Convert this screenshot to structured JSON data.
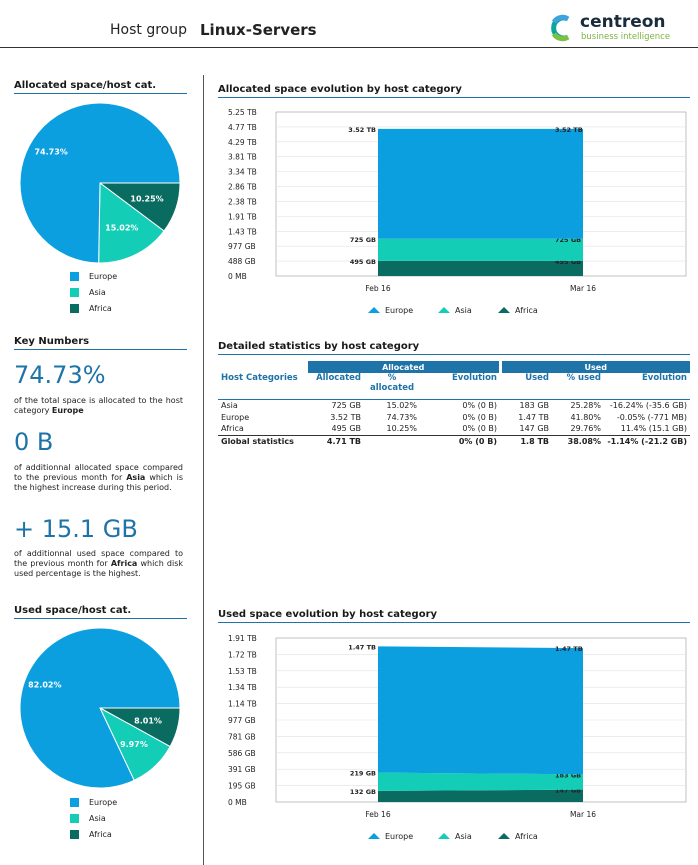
{
  "header": {
    "prefix": "Host group",
    "group_name": "Linux-Servers",
    "logo_text": "centreon",
    "logo_sub": "business intelligence"
  },
  "colors": {
    "europe": "#0b9fe0",
    "asia": "#14cdb6",
    "africa": "#0a6b60",
    "accent": "#1e73a8"
  },
  "legend": [
    "Europe",
    "Asia",
    "Africa"
  ],
  "alloc_pie": {
    "title": "Allocated space/host cat.",
    "labels": [
      "74.73%",
      "15.02%",
      "10.25%"
    ]
  },
  "used_pie": {
    "title": "Used space/host cat.",
    "labels": [
      "82.02%",
      "9.97%",
      "8.01%"
    ]
  },
  "key_numbers": {
    "title": "Key Numbers",
    "k1_value": "74.73%",
    "k1_text_a": "of the total space is allocated to the host category",
    "k1_bold": "Europe",
    "k2_value": "0 B",
    "k2_text_a": "of additionnal allocated space compared to the previous month for",
    "k2_bold": "Asia",
    "k2_text_b": "which is the highest increase during this period.",
    "k3_value": "+ 15.1 GB",
    "k3_text_a": "of additionnal used space compared to the previous month for",
    "k3_bold": "Africa",
    "k3_text_b": "which disk used percentage is the highest."
  },
  "alloc_chart_title": "Allocated space evolution by host category",
  "used_chart_title": "Used space evolution by host category",
  "stats": {
    "title": "Detailed statistics by host category",
    "group_allocated": "Allocated",
    "group_used": "Used",
    "columns": [
      "Host Categories",
      "Allocated",
      "% allocated",
      "Evolution",
      "Used",
      "% used",
      "Evolution"
    ],
    "rows": [
      [
        "Asia",
        "725 GB",
        "15.02%",
        "0% (0 B)",
        "183 GB",
        "25.28%",
        "-16.24% (-35.6 GB)"
      ],
      [
        "Europe",
        "3.52 TB",
        "74.73%",
        "0% (0 B)",
        "1.47 TB",
        "41.80%",
        "-0.05% (-771 MB)"
      ],
      [
        "Africa",
        "495 GB",
        "10.25%",
        "0% (0 B)",
        "147 GB",
        "29.76%",
        "11.4% (15.1 GB)"
      ]
    ],
    "total": [
      "Global statistics",
      "4.71 TB",
      "",
      "0% (0 B)",
      "1.8 TB",
      "38.08%",
      "-1.14% (-21.2 GB)"
    ]
  },
  "chart_data": [
    {
      "type": "pie",
      "title": "Allocated space/host cat.",
      "categories": [
        "Europe",
        "Asia",
        "Africa"
      ],
      "values": [
        74.73,
        15.02,
        10.25
      ]
    },
    {
      "type": "area",
      "title": "Allocated space evolution by host category",
      "x": [
        "Feb 16",
        "Mar 16"
      ],
      "y_ticks": [
        "0 MB",
        "488 GB",
        "977 GB",
        "1.43 TB",
        "1.91 TB",
        "2.38 TB",
        "2.86 TB",
        "3.34 TB",
        "3.81 TB",
        "4.29 TB",
        "4.77 TB",
        "5.25 TB"
      ],
      "y_unit": "GB",
      "ylim": [
        0,
        5376
      ],
      "series": [
        {
          "name": "Africa",
          "values": [
            495,
            495
          ],
          "labels": [
            "495 GB",
            "495 GB"
          ]
        },
        {
          "name": "Asia",
          "values": [
            725,
            725
          ],
          "labels": [
            "725 GB",
            "725 GB"
          ]
        },
        {
          "name": "Europe",
          "values": [
            3604,
            3604
          ],
          "labels": [
            "3.52 TB",
            "3.52 TB"
          ]
        }
      ]
    },
    {
      "type": "pie",
      "title": "Used space/host cat.",
      "categories": [
        "Europe",
        "Asia",
        "Africa"
      ],
      "values": [
        82.02,
        9.97,
        8.01
      ]
    },
    {
      "type": "area",
      "title": "Used space evolution by host category",
      "x": [
        "Feb 16",
        "Mar 16"
      ],
      "y_ticks": [
        "0 MB",
        "195 GB",
        "391 GB",
        "586 GB",
        "781 GB",
        "977 GB",
        "1.14 TB",
        "1.34 TB",
        "1.53 TB",
        "1.72 TB",
        "1.91 TB"
      ],
      "y_unit": "GB",
      "ylim": [
        0,
        1956
      ],
      "series": [
        {
          "name": "Africa",
          "values": [
            132,
            147
          ],
          "labels": [
            "132 GB",
            "147 GB"
          ]
        },
        {
          "name": "Asia",
          "values": [
            219,
            183
          ],
          "labels": [
            "219 GB",
            "183 GB"
          ]
        },
        {
          "name": "Europe",
          "values": [
            1505,
            1505
          ],
          "labels": [
            "1.47 TB",
            "1.47 TB"
          ]
        }
      ]
    }
  ]
}
